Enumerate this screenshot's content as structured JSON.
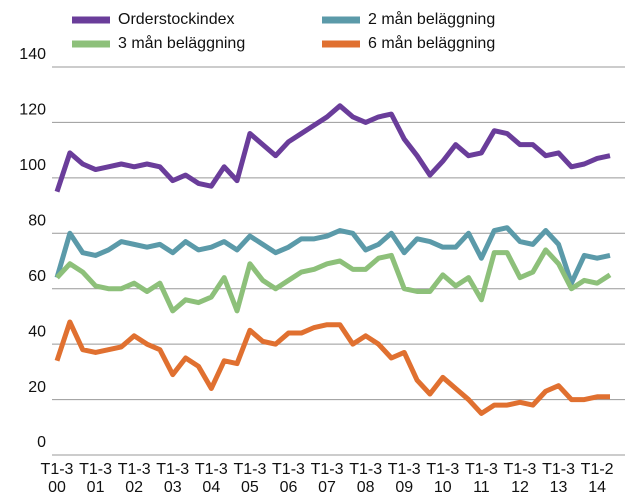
{
  "chart_data": {
    "type": "line",
    "categories": [
      "T1-3 00",
      null,
      null,
      "T1-3 01",
      null,
      null,
      "T1-3 02",
      null,
      null,
      "T1-3 03",
      null,
      null,
      "T1-3 04",
      null,
      null,
      "T1-3 05",
      null,
      null,
      "T1-3 06",
      null,
      null,
      "T1-3 07",
      null,
      null,
      "T1-3 08",
      null,
      null,
      "T1-3 09",
      null,
      null,
      "T1-3 10",
      null,
      null,
      "T1-3 11",
      null,
      null,
      "T1-3 12",
      null,
      null,
      "T1-3 13",
      null,
      null,
      "T1-2 14",
      null
    ],
    "series": [
      {
        "name": "Orderstockindex",
        "color": "#6a3d9a",
        "values": [
          95,
          109,
          105,
          103,
          104,
          105,
          104,
          105,
          104,
          99,
          101,
          98,
          97,
          104,
          99,
          116,
          112,
          108,
          113,
          116,
          119,
          122,
          126,
          122,
          120,
          122,
          123,
          114,
          108,
          101,
          106,
          112,
          108,
          109,
          117,
          116,
          112,
          112,
          108,
          109,
          104,
          105,
          107,
          108
        ]
      },
      {
        "name": "2 mån beläggning",
        "color": "#5b9aa9",
        "values": [
          64,
          80,
          73,
          72,
          74,
          77,
          76,
          75,
          76,
          73,
          77,
          74,
          75,
          77,
          74,
          79,
          76,
          73,
          75,
          78,
          78,
          79,
          81,
          80,
          74,
          76,
          80,
          73,
          78,
          77,
          75,
          75,
          80,
          71,
          81,
          82,
          77,
          76,
          81,
          76,
          62,
          72,
          71,
          72
        ]
      },
      {
        "name": "3 mån beläggning",
        "color": "#8dc07a",
        "values": [
          64,
          69,
          66,
          61,
          60,
          60,
          62,
          59,
          62,
          52,
          56,
          55,
          57,
          64,
          52,
          69,
          63,
          60,
          63,
          66,
          67,
          69,
          70,
          67,
          67,
          71,
          72,
          60,
          59,
          59,
          65,
          61,
          64,
          56,
          73,
          73,
          64,
          66,
          74,
          69,
          60,
          63,
          62,
          65
        ]
      },
      {
        "name": "6 mån beläggning",
        "color": "#e07030",
        "values": [
          34,
          48,
          38,
          37,
          38,
          39,
          43,
          40,
          38,
          29,
          35,
          32,
          24,
          34,
          33,
          45,
          41,
          40,
          44,
          44,
          46,
          47,
          47,
          40,
          43,
          40,
          35,
          37,
          27,
          22,
          28,
          24,
          20,
          15,
          18,
          18,
          19,
          18,
          23,
          25,
          20,
          20,
          21,
          21
        ]
      }
    ],
    "ylim": [
      0,
      140
    ],
    "yticks": [
      0,
      20,
      40,
      60,
      80,
      100,
      120,
      140
    ],
    "grid": true
  }
}
